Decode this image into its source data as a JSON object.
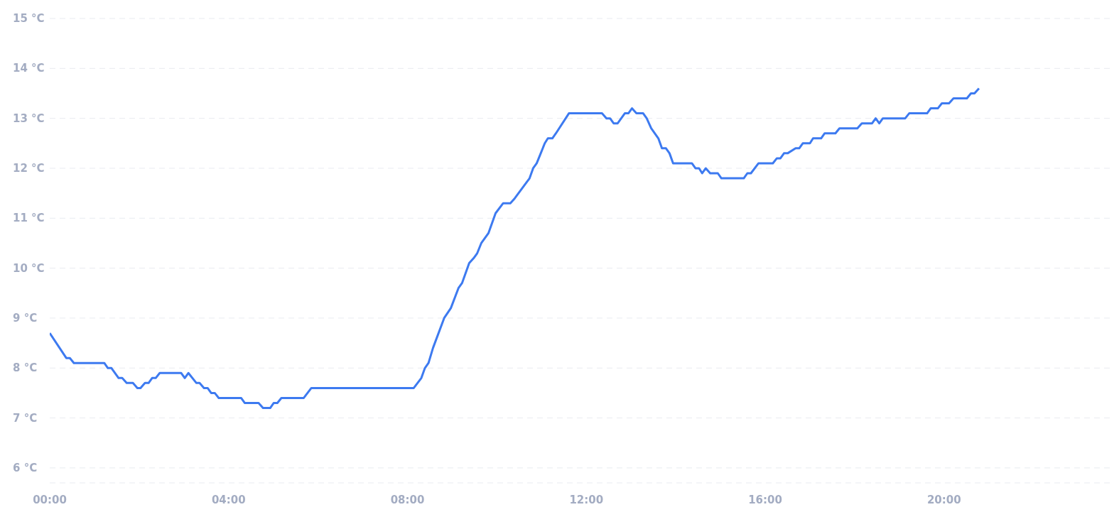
{
  "chart_data": {
    "type": "line",
    "x": [
      0,
      0.37,
      0.45,
      0.54,
      1.22,
      1.3,
      1.38,
      1.54,
      1.62,
      1.72,
      1.86,
      1.96,
      2.03,
      2.13,
      2.21,
      2.29,
      2.37,
      2.46,
      2.94,
      3.02,
      3.1,
      3.28,
      3.35,
      3.45,
      3.53,
      3.61,
      3.69,
      3.78,
      4.28,
      4.36,
      4.67,
      4.77,
      4.93,
      5.01,
      5.09,
      5.18,
      5.68,
      5.85,
      8.14,
      8.31,
      8.39,
      8.47,
      8.57,
      8.82,
      8.97,
      9.14,
      9.22,
      9.38,
      9.48,
      9.56,
      9.65,
      9.81,
      9.97,
      10.14,
      10.3,
      10.4,
      10.73,
      10.81,
      10.89,
      11.07,
      11.14,
      11.24,
      11.32,
      11.61,
      12.35,
      12.45,
      12.53,
      12.61,
      12.7,
      12.86,
      12.94,
      13.02,
      13.12,
      13.27,
      13.35,
      13.45,
      13.61,
      13.69,
      13.78,
      13.86,
      13.94,
      14.36,
      14.44,
      14.52,
      14.59,
      14.67,
      14.77,
      14.94,
      15.02,
      15.52,
      15.6,
      15.68,
      15.85,
      16.17,
      16.26,
      16.34,
      16.42,
      16.5,
      16.68,
      16.76,
      16.84,
      17,
      17.07,
      17.25,
      17.33,
      17.57,
      17.66,
      18.06,
      18.16,
      18.39,
      18.47,
      18.55,
      18.63,
      19.13,
      19.22,
      19.62,
      19.7,
      19.86,
      19.95,
      20.11,
      20.21,
      20.51,
      20.6,
      20.68,
      20.78
    ],
    "series": [
      {
        "color": "#3d7af0",
        "values": [
          8.7,
          8.2,
          8.2,
          8.1,
          8.1,
          8.0,
          8.0,
          7.8,
          7.8,
          7.7,
          7.7,
          7.6,
          7.6,
          7.7,
          7.7,
          7.8,
          7.8,
          7.9,
          7.9,
          7.8,
          7.9,
          7.7,
          7.7,
          7.6,
          7.6,
          7.5,
          7.5,
          7.4,
          7.4,
          7.3,
          7.3,
          7.2,
          7.2,
          7.3,
          7.3,
          7.4,
          7.4,
          7.6,
          7.6,
          7.8,
          8.0,
          8.1,
          8.4,
          9.0,
          9.2,
          9.6,
          9.7,
          10.1,
          10.2,
          10.3,
          10.5,
          10.7,
          11.1,
          11.3,
          11.3,
          11.4,
          11.8,
          12.0,
          12.1,
          12.5,
          12.6,
          12.6,
          12.7,
          13.1,
          13.1,
          13.0,
          13.0,
          12.9,
          12.9,
          13.1,
          13.1,
          13.2,
          13.1,
          13.1,
          13.0,
          12.8,
          12.6,
          12.4,
          12.4,
          12.3,
          12.1,
          12.1,
          12.0,
          12.0,
          11.9,
          12.0,
          11.9,
          11.9,
          11.8,
          11.8,
          11.9,
          11.9,
          12.1,
          12.1,
          12.2,
          12.2,
          12.3,
          12.3,
          12.4,
          12.4,
          12.5,
          12.5,
          12.6,
          12.6,
          12.7,
          12.7,
          12.8,
          12.8,
          12.9,
          12.9,
          13.0,
          12.9,
          13.0,
          13.0,
          13.1,
          13.1,
          13.2,
          13.2,
          13.3,
          13.3,
          13.4,
          13.4,
          13.5,
          13.5,
          13.6
        ]
      }
    ],
    "xlim": [
      0,
      23.8
    ],
    "xticks": [
      {
        "value": 0,
        "label": "00:00"
      },
      {
        "value": 4,
        "label": "04:00"
      },
      {
        "value": 8,
        "label": "08:00"
      },
      {
        "value": 12,
        "label": "12:00"
      },
      {
        "value": 16,
        "label": "16:00"
      },
      {
        "value": 20,
        "label": "20:00"
      }
    ],
    "ylim": [
      5.7,
      15
    ],
    "yticks": [
      {
        "value": 6,
        "label": "6 °C"
      },
      {
        "value": 7,
        "label": "7 °C"
      },
      {
        "value": 8,
        "label": "8 °C"
      },
      {
        "value": 9,
        "label": "9 °C"
      },
      {
        "value": 10,
        "label": "10 °C"
      },
      {
        "value": 11,
        "label": "11 °C"
      },
      {
        "value": 12,
        "label": "12 °C"
      },
      {
        "value": 13,
        "label": "13 °C"
      },
      {
        "value": 14,
        "label": "14 °C"
      },
      {
        "value": 15,
        "label": "15 °C"
      }
    ],
    "grid": "y",
    "marker": "none",
    "line_style": "solid"
  }
}
